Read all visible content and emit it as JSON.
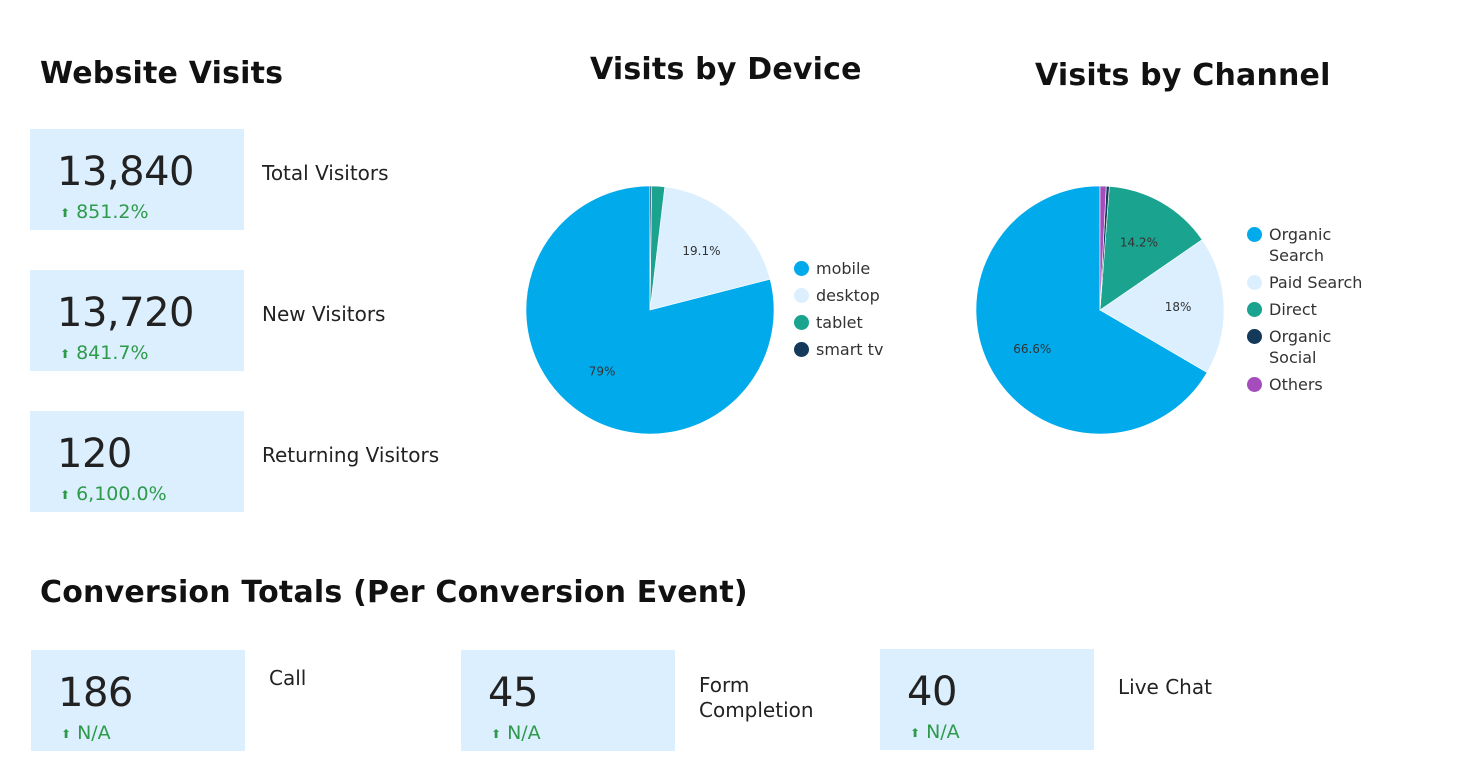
{
  "sections": {
    "website_visits": "Website Visits",
    "visits_by_device": "Visits by Device",
    "visits_by_channel": "Visits by Channel",
    "conversion_totals": "Conversion Totals (Per Conversion Event)"
  },
  "visit_cards": [
    {
      "value": "13,840",
      "change": "851.2%",
      "label": "Total Visitors"
    },
    {
      "value": "13,720",
      "change": "841.7%",
      "label": "New Visitors"
    },
    {
      "value": "120",
      "change": "6,100.0%",
      "label": "Returning Visitors"
    }
  ],
  "conversion_cards": [
    {
      "value": "186",
      "change": "N/A",
      "label": "Call"
    },
    {
      "value": "45",
      "change": "N/A",
      "label": "Form Completion"
    },
    {
      "value": "40",
      "change": "N/A",
      "label": "Live Chat"
    }
  ],
  "icons": {
    "change_arrow": "arrow-up-icon"
  },
  "colors": {
    "card_bg": "#dcefff",
    "positive": "#2e9a4a"
  },
  "chart_data": [
    {
      "type": "pie",
      "title": "Visits by Device",
      "legend": "right",
      "slices": [
        {
          "name": "mobile",
          "value": 79,
          "label": "79%",
          "color": "#00aaeb"
        },
        {
          "name": "desktop",
          "value": 19.1,
          "label": "19.1%",
          "color": "#dcefff"
        },
        {
          "name": "tablet",
          "value": 1.7,
          "label": "",
          "color": "#1aa38f"
        },
        {
          "name": "smart tv",
          "value": 0.2,
          "label": "",
          "color": "#14395b"
        }
      ]
    },
    {
      "type": "pie",
      "title": "Visits by Channel",
      "legend": "right",
      "slices": [
        {
          "name": "Organic Search",
          "value": 66.6,
          "label": "66.6%",
          "color": "#00aaeb"
        },
        {
          "name": "Paid Search",
          "value": 18,
          "label": "18%",
          "color": "#dcefff"
        },
        {
          "name": "Direct",
          "value": 14.2,
          "label": "14.2%",
          "color": "#1aa38f"
        },
        {
          "name": "Organic Social",
          "value": 0.4,
          "label": "",
          "color": "#14395b"
        },
        {
          "name": "Others",
          "value": 0.8,
          "label": "",
          "color": "#a64dbd"
        }
      ]
    }
  ]
}
